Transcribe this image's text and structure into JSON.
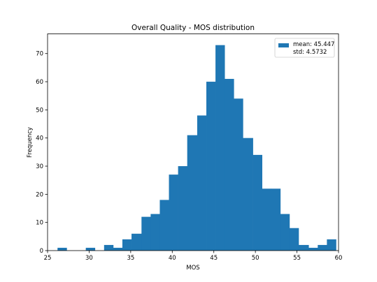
{
  "chart_data": {
    "type": "bar",
    "subtype": "histogram",
    "title": "Overall Quality - MOS distribution",
    "xlabel": "MOS",
    "ylabel": "Frequency",
    "xlim": [
      25,
      60
    ],
    "ylim": [
      0,
      77
    ],
    "xticks": [
      25,
      30,
      35,
      40,
      45,
      50,
      55,
      60
    ],
    "yticks": [
      0,
      10,
      20,
      30,
      40,
      50,
      60,
      70
    ],
    "grid": false,
    "legend_placement": "top-right",
    "color": "#1f77b4",
    "bins": [
      {
        "x0": 26.2,
        "x1": 27.3,
        "count": 1
      },
      {
        "x0": 27.3,
        "x1": 28.4,
        "count": 0
      },
      {
        "x0": 28.4,
        "x1": 29.6,
        "count": 0
      },
      {
        "x0": 29.6,
        "x1": 30.7,
        "count": 1
      },
      {
        "x0": 30.7,
        "x1": 31.8,
        "count": 0
      },
      {
        "x0": 31.8,
        "x1": 32.9,
        "count": 2
      },
      {
        "x0": 32.9,
        "x1": 34.0,
        "count": 1
      },
      {
        "x0": 34.0,
        "x1": 35.1,
        "count": 4
      },
      {
        "x0": 35.1,
        "x1": 36.3,
        "count": 6
      },
      {
        "x0": 36.3,
        "x1": 37.4,
        "count": 12
      },
      {
        "x0": 37.4,
        "x1": 38.5,
        "count": 13
      },
      {
        "x0": 38.5,
        "x1": 39.6,
        "count": 18
      },
      {
        "x0": 39.6,
        "x1": 40.7,
        "count": 27
      },
      {
        "x0": 40.7,
        "x1": 41.8,
        "count": 30
      },
      {
        "x0": 41.8,
        "x1": 43.0,
        "count": 41
      },
      {
        "x0": 43.0,
        "x1": 44.1,
        "count": 48
      },
      {
        "x0": 44.1,
        "x1": 45.2,
        "count": 60
      },
      {
        "x0": 45.2,
        "x1": 46.3,
        "count": 73
      },
      {
        "x0": 46.3,
        "x1": 47.4,
        "count": 61
      },
      {
        "x0": 47.4,
        "x1": 48.5,
        "count": 54
      },
      {
        "x0": 48.5,
        "x1": 49.7,
        "count": 40
      },
      {
        "x0": 49.7,
        "x1": 50.8,
        "count": 34
      },
      {
        "x0": 50.8,
        "x1": 51.9,
        "count": 22
      },
      {
        "x0": 51.9,
        "x1": 53.0,
        "count": 22
      },
      {
        "x0": 53.0,
        "x1": 54.1,
        "count": 13
      },
      {
        "x0": 54.1,
        "x1": 55.2,
        "count": 8
      },
      {
        "x0": 55.2,
        "x1": 56.4,
        "count": 2
      },
      {
        "x0": 56.4,
        "x1": 57.5,
        "count": 1
      },
      {
        "x0": 57.5,
        "x1": 58.6,
        "count": 2
      },
      {
        "x0": 58.6,
        "x1": 59.7,
        "count": 4
      }
    ],
    "legend": {
      "lines": [
        "mean: 45.447",
        "std: 4.5732"
      ]
    }
  }
}
